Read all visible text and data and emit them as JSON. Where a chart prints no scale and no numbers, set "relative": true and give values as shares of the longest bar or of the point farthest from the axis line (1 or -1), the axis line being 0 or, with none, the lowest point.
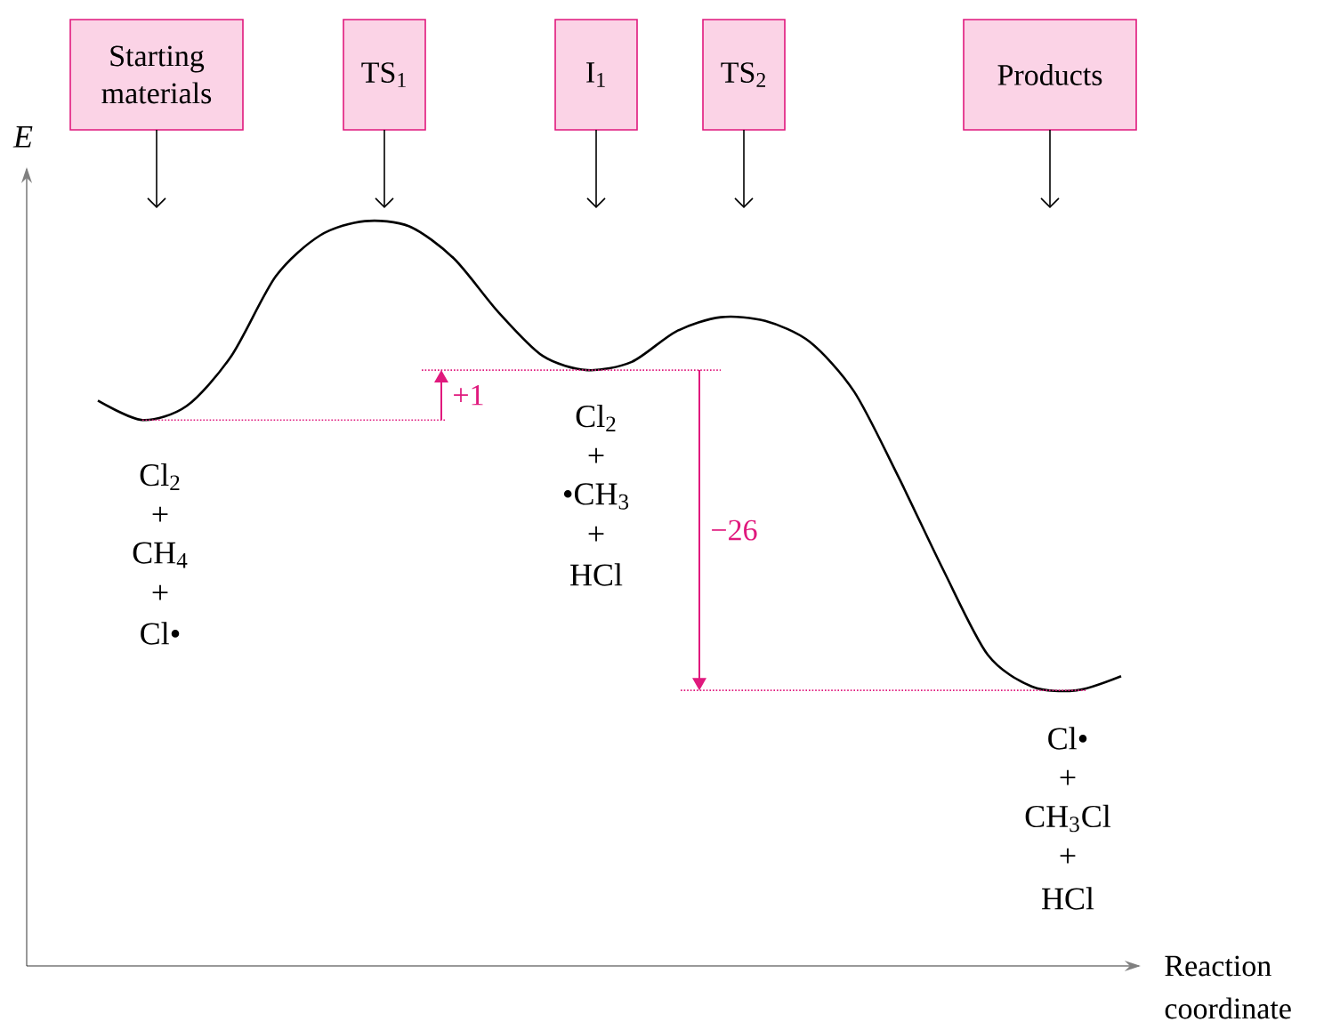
{
  "chart_data": {
    "type": "line",
    "relative": true,
    "ylabel": "E",
    "xlabel": "Reaction coordinate",
    "color": "#000000",
    "marker": "none",
    "line_style": "solid",
    "categories": [
      null,
      null,
      null,
      null,
      null,
      null,
      null,
      null,
      null,
      null,
      null,
      null,
      null,
      null,
      null,
      null,
      null,
      null,
      null,
      null,
      null,
      null,
      null,
      null
    ],
    "values": [
      0.759,
      0.733,
      0.752,
      0.819,
      0.926,
      0.981,
      1,
      0.993,
      0.95,
      0.878,
      0.819,
      0.8,
      0.811,
      0.852,
      0.871,
      0.866,
      0.838,
      0.771,
      0.656,
      0.532,
      0.418,
      0.375,
      0.37,
      0.389
    ],
    "ref_lines": [
      {
        "axis": "y",
        "value": 0.733,
        "label": null,
        "color": "#e0197d",
        "line_style": "dotted"
      },
      {
        "axis": "y",
        "value": 0.8,
        "label": "+1",
        "color": "#e0197d",
        "line_style": "dotted"
      },
      {
        "axis": "y",
        "value": 0.37,
        "label": "−26",
        "color": "#e0197d",
        "line_style": "dotted"
      }
    ],
    "annotations": [
      "Starting materials",
      "TS$_{1}$",
      "I$_{1}$",
      "TS$_{2}$",
      "Products",
      "Cl$_{2}$",
      "+",
      "CH$_{4}$",
      "+",
      "Cl•",
      "Cl$_{2}$",
      "+",
      "•CH$_{3}$",
      "+",
      "HCl",
      "Cl•",
      "+",
      "CH$_{3}$Cl",
      "+",
      "HCl"
    ]
  }
}
